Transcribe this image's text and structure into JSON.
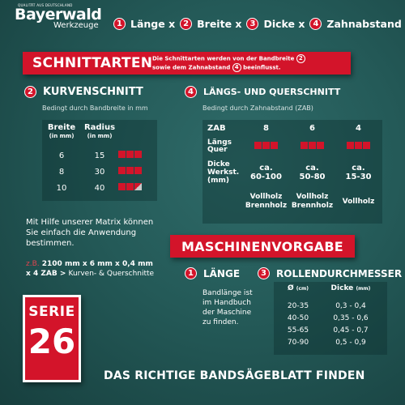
{
  "brand": {
    "tagline": "QUALITÄT AUS DEUTSCHLAND",
    "name": "Bayerwald",
    "sub": "Werkzeuge"
  },
  "header": {
    "formula": [
      {
        "num": "1",
        "label": "Länge x"
      },
      {
        "num": "2",
        "label": "Breite x"
      },
      {
        "num": "3",
        "label": "Dicke x"
      },
      {
        "num": "4",
        "label": "Zahnabstand"
      }
    ]
  },
  "schnittarten": {
    "title": "SCHNITTARTEN",
    "desc_line1": "Die Schnittarten werden von der Bandbreite",
    "desc_num1": "2",
    "desc_line2": "sowie dem Zahnabstand",
    "desc_num2": "4",
    "desc_line3": "beeinflusst."
  },
  "kurvenschnitt": {
    "num": "2",
    "title": "KURVENSCHNITT",
    "sub": "Bedingt durch Bandbreite in mm",
    "headers": {
      "breite": "Breite",
      "breite_unit": "(in mm)",
      "radius": "Radius",
      "radius_unit": "(in mm)"
    },
    "rows": [
      {
        "breite": "6",
        "radius": "15",
        "level": 3
      },
      {
        "breite": "8",
        "radius": "30",
        "level": 3
      },
      {
        "breite": "10",
        "radius": "40",
        "level": 2.5
      }
    ]
  },
  "laengs": {
    "num": "4",
    "title": "LÄNGS- UND QUERSCHNITT",
    "sub": "Bedingt durch Zahnabstand (ZAB)",
    "zab_label": "ZAB",
    "zab": [
      "8",
      "6",
      "4"
    ],
    "lq_label1": "Längs",
    "lq_label2": "Quer",
    "dicke_label1": "Dicke",
    "dicke_label2": "Werkst.",
    "dicke_label3": "(mm)",
    "dicke": [
      {
        "l1": "ca.",
        "l2": "60-100"
      },
      {
        "l1": "ca.",
        "l2": "50-80"
      },
      {
        "l1": "ca.",
        "l2": "15-30"
      }
    ],
    "holz": [
      {
        "l1": "Vollholz",
        "l2": "Brennholz"
      },
      {
        "l1": "Vollholz",
        "l2": "Brennholz"
      },
      {
        "l1": "Vollholz",
        "l2": ""
      }
    ]
  },
  "matrix_text": {
    "line1": "Mit Hilfe unserer Matrix können",
    "line2": "Sie einfach die Anwendung",
    "line3": "bestimmen.",
    "example_prefix": "z.B.",
    "example_value": "2100 mm x 6 mm x 0,4 mm",
    "example_line2": "x 4 ZAB >",
    "example_result": "Kurven- & Querschnitte"
  },
  "maschinenvorgabe": {
    "title": "MASCHINENVORGABE",
    "laenge_num": "1",
    "laenge_title": "LÄNGE",
    "laenge_text": [
      "Bandlänge ist",
      "im Handbuch",
      "der Maschine",
      "zu finden."
    ],
    "rollen_num": "3",
    "rollen_title": "ROLLENDURCHMESSER",
    "col1": "Ø",
    "col1_unit": "(cm)",
    "col2": "Dicke",
    "col2_unit": "(mm)",
    "rows": [
      {
        "d": "20-35",
        "dicke": "0,3 - 0,4"
      },
      {
        "d": "40-50",
        "dicke": "0,35 - 0,6"
      },
      {
        "d": "55-65",
        "dicke": "0,45 - 0,7"
      },
      {
        "d": "70-90",
        "dicke": "0,5 - 0,9"
      }
    ]
  },
  "serie": {
    "label": "SERIE",
    "number": "26"
  },
  "footer": {
    "text": "DAS RICHTIGE BANDSÄGEBLATT FINDEN"
  },
  "colors": {
    "accent": "#d3142a",
    "background": "#245a58"
  }
}
